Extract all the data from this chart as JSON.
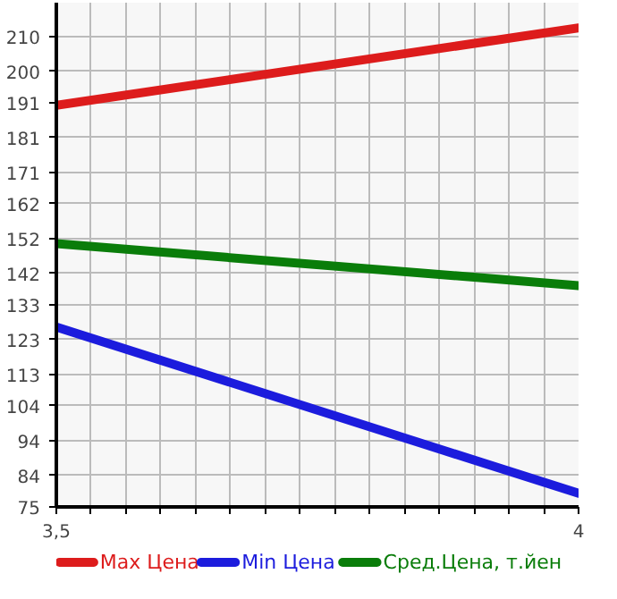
{
  "chart_data": {
    "type": "line",
    "x": [
      3.5,
      4
    ],
    "series": [
      {
        "name": "Max Цена",
        "color": "#dd1c1c",
        "values": [
          190.2,
          212.4
        ]
      },
      {
        "name": "Min Цена",
        "color": "#1c1cdd",
        "values": [
          126.6,
          78.9
        ]
      },
      {
        "name": "Сред.Цена, т.йен",
        "color": "#0a7d0a",
        "values": [
          150.5,
          138.5
        ]
      }
    ],
    "xlim": [
      3.5,
      4
    ],
    "xticks": [
      {
        "value": 3.5,
        "label": "3,5"
      },
      {
        "value": 3.5333,
        "label": null
      },
      {
        "value": 3.5667,
        "label": null
      },
      {
        "value": 3.6,
        "label": null
      },
      {
        "value": 3.6333,
        "label": null
      },
      {
        "value": 3.6667,
        "label": null
      },
      {
        "value": 3.7,
        "label": null
      },
      {
        "value": 3.7333,
        "label": null
      },
      {
        "value": 3.7667,
        "label": null
      },
      {
        "value": 3.8,
        "label": null
      },
      {
        "value": 3.8333,
        "label": null
      },
      {
        "value": 3.8667,
        "label": null
      },
      {
        "value": 3.9,
        "label": null
      },
      {
        "value": 3.9333,
        "label": null
      },
      {
        "value": 3.9667,
        "label": null
      },
      {
        "value": 4,
        "label": "4"
      }
    ],
    "ylim": [
      75,
      219.64
    ],
    "yticks": [
      75,
      84,
      94,
      104,
      113,
      123,
      133,
      142,
      152,
      162,
      171,
      181,
      191,
      200,
      210
    ],
    "grid": true,
    "legend": "bottom",
    "marker": "none",
    "line_style": "solid"
  }
}
